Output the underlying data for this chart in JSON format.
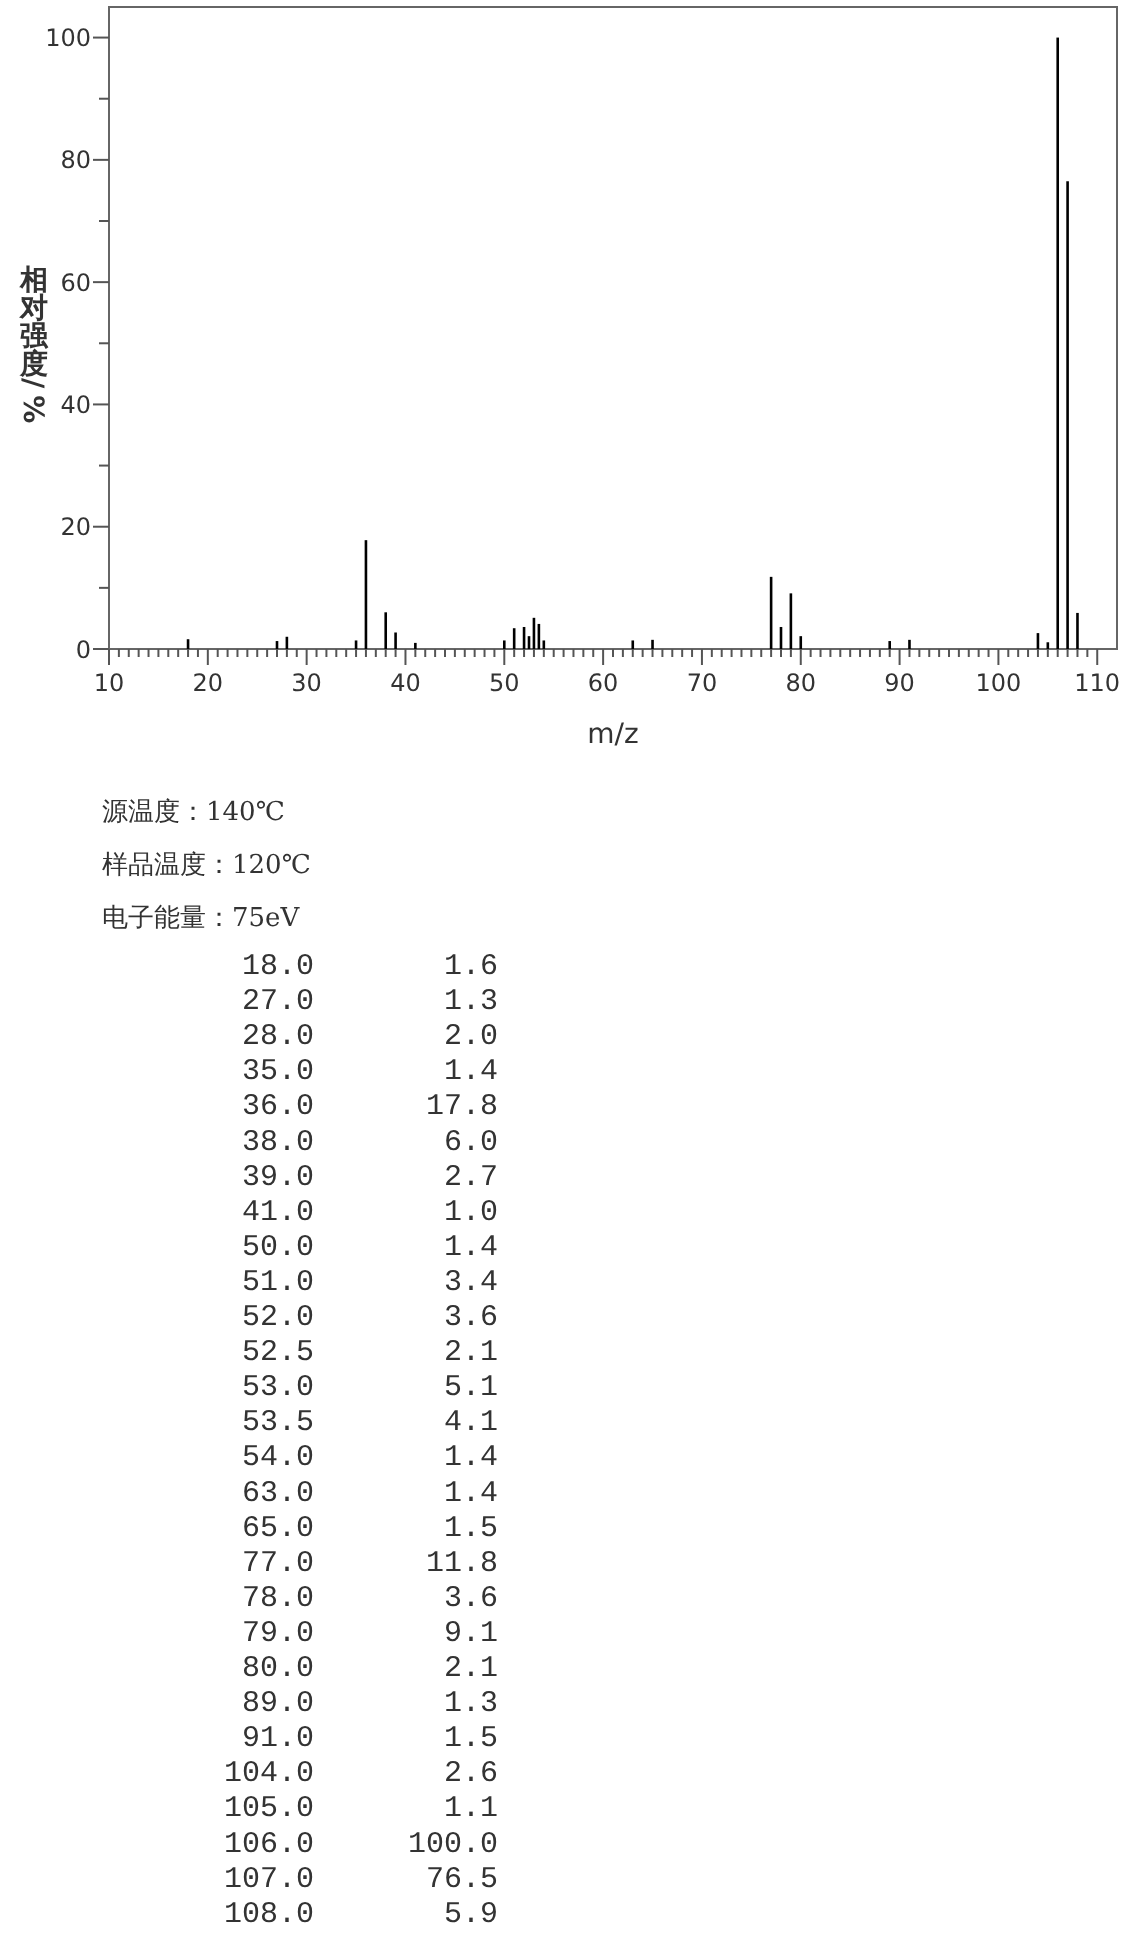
{
  "chart_data": [
    {
      "type": "bar",
      "xlabel": "m/z",
      "ylabel": "相对强度/%",
      "annotations": [
        "源温度：140℃",
        "样品温度：120℃",
        "电子能量：75eV"
      ],
      "x": [
        18,
        27,
        28,
        35,
        36,
        38,
        39,
        41,
        50,
        51,
        52,
        52.5,
        53,
        53.5,
        54,
        63,
        65,
        77,
        78,
        79,
        80,
        89,
        91,
        104,
        105,
        106,
        107,
        108
      ],
      "values": [
        1.6,
        1.3,
        2.0,
        1.4,
        17.8,
        6.0,
        2.7,
        1.0,
        1.4,
        3.4,
        3.6,
        2.1,
        5.1,
        4.1,
        1.4,
        1.4,
        1.5,
        11.8,
        3.6,
        9.1,
        2.1,
        1.3,
        1.5,
        2.6,
        1.1,
        100.0,
        76.5,
        5.9
      ],
      "color": "#000000",
      "xlim": [
        10,
        112
      ],
      "ylim": [
        0,
        105
      ],
      "xticks": [
        10,
        {
          "value": 11,
          "label": null
        },
        {
          "value": 12,
          "label": null
        },
        {
          "value": 13,
          "label": null
        },
        {
          "value": 14,
          "label": null
        },
        {
          "value": 15,
          "label": null
        },
        {
          "value": 16,
          "label": null
        },
        {
          "value": 17,
          "label": null
        },
        {
          "value": 18,
          "label": null
        },
        {
          "value": 19,
          "label": null
        },
        20,
        {
          "value": 21,
          "label": null
        },
        {
          "value": 22,
          "label": null
        },
        {
          "value": 23,
          "label": null
        },
        {
          "value": 24,
          "label": null
        },
        {
          "value": 25,
          "label": null
        },
        {
          "value": 26,
          "label": null
        },
        {
          "value": 27,
          "label": null
        },
        {
          "value": 28,
          "label": null
        },
        {
          "value": 29,
          "label": null
        },
        30,
        {
          "value": 31,
          "label": null
        },
        {
          "value": 32,
          "label": null
        },
        {
          "value": 33,
          "label": null
        },
        {
          "value": 34,
          "label": null
        },
        {
          "value": 35,
          "label": null
        },
        {
          "value": 36,
          "label": null
        },
        {
          "value": 37,
          "label": null
        },
        {
          "value": 38,
          "label": null
        },
        {
          "value": 39,
          "label": null
        },
        40,
        {
          "value": 41,
          "label": null
        },
        {
          "value": 42,
          "label": null
        },
        {
          "value": 43,
          "label": null
        },
        {
          "value": 44,
          "label": null
        },
        {
          "value": 45,
          "label": null
        },
        {
          "value": 46,
          "label": null
        },
        {
          "value": 47,
          "label": null
        },
        {
          "value": 48,
          "label": null
        },
        {
          "value": 49,
          "label": null
        },
        50,
        {
          "value": 51,
          "label": null
        },
        {
          "value": 52,
          "label": null
        },
        {
          "value": 53,
          "label": null
        },
        {
          "value": 54,
          "label": null
        },
        {
          "value": 55,
          "label": null
        },
        {
          "value": 56,
          "label": null
        },
        {
          "value": 57,
          "label": null
        },
        {
          "value": 58,
          "label": null
        },
        {
          "value": 59,
          "label": null
        },
        60,
        {
          "value": 61,
          "label": null
        },
        {
          "value": 62,
          "label": null
        },
        {
          "value": 63,
          "label": null
        },
        {
          "value": 64,
          "label": null
        },
        {
          "value": 65,
          "label": null
        },
        {
          "value": 66,
          "label": null
        },
        {
          "value": 67,
          "label": null
        },
        {
          "value": 68,
          "label": null
        },
        {
          "value": 69,
          "label": null
        },
        70,
        {
          "value": 71,
          "label": null
        },
        {
          "value": 72,
          "label": null
        },
        {
          "value": 73,
          "label": null
        },
        {
          "value": 74,
          "label": null
        },
        {
          "value": 75,
          "label": null
        },
        {
          "value": 76,
          "label": null
        },
        {
          "value": 77,
          "label": null
        },
        {
          "value": 78,
          "label": null
        },
        {
          "value": 79,
          "label": null
        },
        80,
        {
          "value": 81,
          "label": null
        },
        {
          "value": 82,
          "label": null
        },
        {
          "value": 83,
          "label": null
        },
        {
          "value": 84,
          "label": null
        },
        {
          "value": 85,
          "label": null
        },
        {
          "value": 86,
          "label": null
        },
        {
          "value": 87,
          "label": null
        },
        {
          "value": 88,
          "label": null
        },
        {
          "value": 89,
          "label": null
        },
        90,
        {
          "value": 91,
          "label": null
        },
        {
          "value": 92,
          "label": null
        },
        {
          "value": 93,
          "label": null
        },
        {
          "value": 94,
          "label": null
        },
        {
          "value": 95,
          "label": null
        },
        {
          "value": 96,
          "label": null
        },
        {
          "value": 97,
          "label": null
        },
        {
          "value": 98,
          "label": null
        },
        {
          "value": 99,
          "label": null
        },
        100,
        {
          "value": 101,
          "label": null
        },
        {
          "value": 102,
          "label": null
        },
        {
          "value": 103,
          "label": null
        },
        {
          "value": 104,
          "label": null
        },
        {
          "value": 105,
          "label": null
        },
        {
          "value": 106,
          "label": null
        },
        {
          "value": 107,
          "label": null
        },
        {
          "value": 108,
          "label": null
        },
        {
          "value": 109,
          "label": null
        },
        110
      ],
      "yticks": [
        0,
        {
          "value": 10,
          "label": null
        },
        20,
        {
          "value": 30,
          "label": null
        },
        40,
        {
          "value": 50,
          "label": null
        },
        60,
        {
          "value": 70,
          "label": null
        },
        80,
        {
          "value": 90,
          "label": null
        },
        100
      ]
    },
    {
      "type": "other",
      "annotations": [
        "18.0",
        "1.6",
        "27.0",
        "1.3",
        "28.0",
        "2.0",
        "35.0",
        "1.4",
        "36.0",
        "17.8",
        "38.0",
        "6.0",
        "39.0",
        "2.7",
        "41.0",
        "1.0",
        "50.0",
        "1.4",
        "51.0",
        "3.4",
        "52.0",
        "3.6",
        "52.5",
        "2.1",
        "53.0",
        "5.1",
        "53.5",
        "4.1",
        "54.0",
        "1.4",
        "63.0",
        "1.4",
        "65.0",
        "1.5",
        "77.0",
        "11.8",
        "78.0",
        "3.6",
        "79.0",
        "9.1",
        "80.0",
        "2.1",
        "89.0",
        "1.3",
        "91.0",
        "1.5",
        "104.0",
        "2.6",
        "105.0",
        "1.1",
        "106.0",
        "100.0",
        "107.0",
        "76.5",
        "108.0",
        "5.9"
      ]
    }
  ]
}
